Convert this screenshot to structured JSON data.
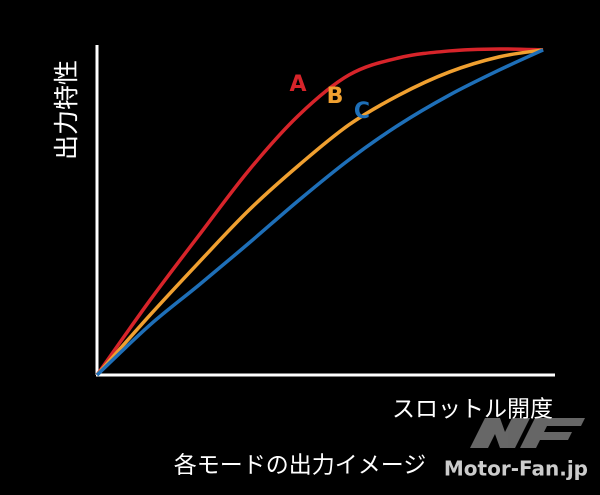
{
  "chart_data": {
    "type": "line",
    "y_label": "出力特性",
    "x_label": "スロットル開度",
    "caption": "各モードの出力イメージ",
    "watermark": "Motor-Fan.jp",
    "xlim": [
      0,
      100
    ],
    "ylim": [
      0,
      100
    ],
    "x": [
      0,
      11.6,
      22.3,
      33.2,
      44.1,
      55.0,
      65.9,
      76.9,
      87.8,
      97.4
    ],
    "series": [
      {
        "name": "A",
        "color": "#d7242a",
        "values": [
          0,
          22.7,
          42.4,
          62.1,
          78.8,
          90.9,
          96.1,
          98.2,
          98.8,
          98.5
        ]
      },
      {
        "name": "B",
        "color": "#f0a030",
        "values": [
          0,
          18.2,
          34.2,
          50.0,
          63.6,
          75.8,
          84.8,
          91.8,
          96.4,
          98.5
        ]
      },
      {
        "name": "C",
        "color": "#1e6fb8",
        "values": [
          0,
          15.2,
          27.3,
          40.0,
          53.0,
          65.2,
          75.8,
          84.8,
          92.4,
          98.5
        ]
      }
    ]
  }
}
